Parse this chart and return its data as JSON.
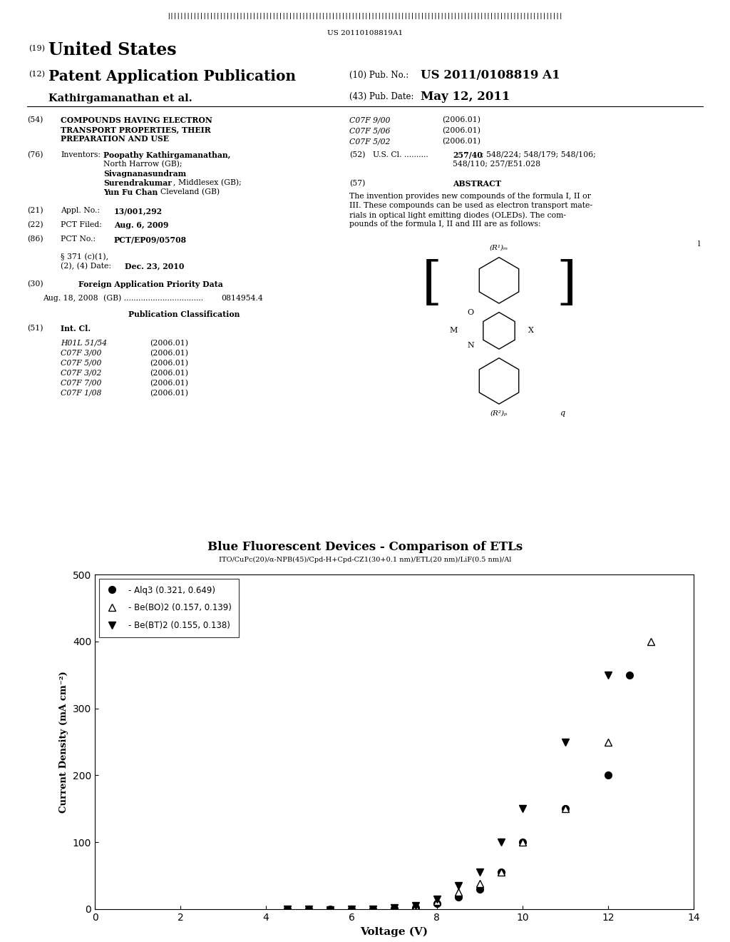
{
  "title": "Blue Fluorescent Devices - Comparison of ETLs",
  "subtitle": "ITO/CuPc(20)/α-NPB(45)/Cpd-H+Cpd-CZ1(30+0.1 nm)/ETL(20 nm)/LiF(0.5 nm)/Al",
  "xlabel": "Voltage (V)",
  "ylabel": "Current Density (mA cm⁻²)",
  "xlim": [
    0,
    14
  ],
  "ylim": [
    0,
    500
  ],
  "xticks": [
    0,
    2,
    4,
    6,
    8,
    10,
    12,
    14
  ],
  "yticks": [
    0,
    100,
    200,
    300,
    400,
    500
  ],
  "alq3_x": [
    4.5,
    5.0,
    5.5,
    6.0,
    6.5,
    7.0,
    7.5,
    8.0,
    8.5,
    9.0,
    9.5,
    10.0,
    11.0,
    12.0,
    12.5
  ],
  "alq3_y": [
    0,
    0,
    0,
    0,
    0,
    1,
    2,
    8,
    18,
    30,
    55,
    100,
    150,
    200,
    350
  ],
  "bebo2_x": [
    4.5,
    5.0,
    5.5,
    6.0,
    6.5,
    7.0,
    7.5,
    8.0,
    8.5,
    9.0,
    9.5,
    10.0,
    11.0,
    12.0,
    13.0
  ],
  "bebo2_y": [
    0,
    0,
    0,
    0,
    0,
    1,
    3,
    12,
    25,
    38,
    55,
    100,
    150,
    250,
    400
  ],
  "bebt2_x": [
    4.5,
    5.0,
    5.5,
    6.0,
    6.5,
    7.0,
    7.5,
    8.0,
    8.5,
    9.0,
    9.5,
    10.0,
    11.0,
    12.0
  ],
  "bebt2_y": [
    0,
    0,
    -1,
    0,
    0,
    2,
    5,
    15,
    35,
    55,
    100,
    150,
    250,
    350
  ],
  "legend_labels": [
    "- Alq3 (0.321, 0.649)",
    "- Be(BO)2 (0.157, 0.139)",
    "- Be(BT)2 (0.155, 0.138)"
  ]
}
